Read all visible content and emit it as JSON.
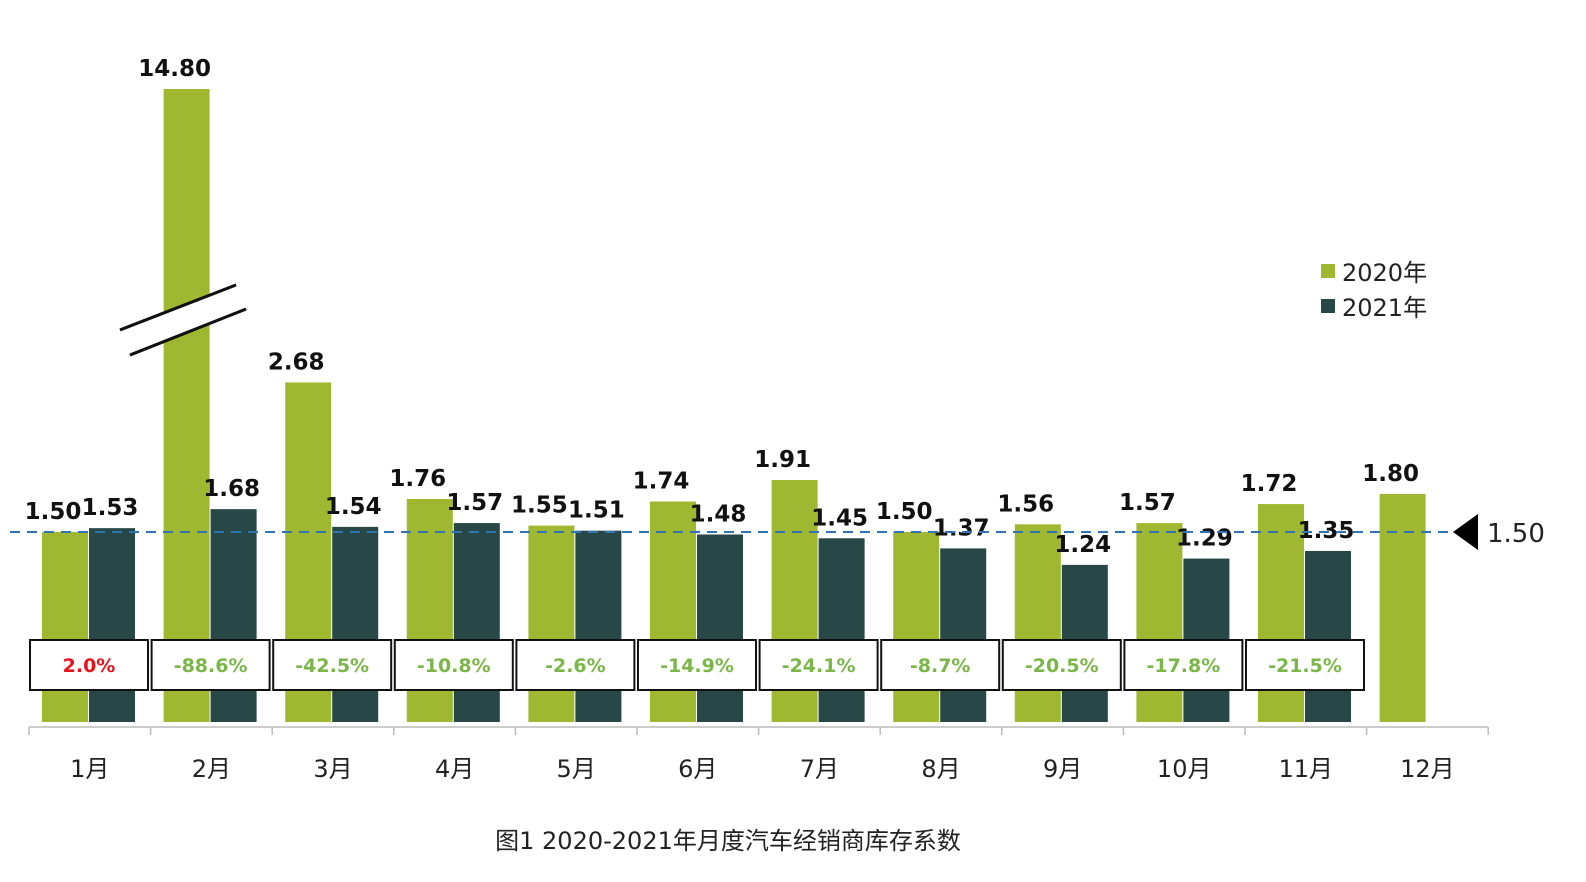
{
  "chart_data": {
    "type": "bar",
    "title": "",
    "caption": "图1  2020-2021年月度汽车经销商库存系数",
    "categories": [
      "1月",
      "2月",
      "3月",
      "4月",
      "5月",
      "6月",
      "7月",
      "8月",
      "9月",
      "10月",
      "11月",
      "12月"
    ],
    "series": [
      {
        "name": "2020年",
        "color": "#a0b831",
        "values": [
          1.5,
          14.8,
          2.68,
          1.76,
          1.55,
          1.74,
          1.91,
          1.5,
          1.56,
          1.57,
          1.72,
          1.8
        ],
        "labels": [
          "1.50",
          "14.80",
          "2.68",
          "1.76",
          "1.55",
          "1.74",
          "1.91",
          "1.50",
          "1.56",
          "1.57",
          "1.72",
          "1.80"
        ]
      },
      {
        "name": "2021年",
        "color": "#284848",
        "values": [
          1.53,
          1.68,
          1.54,
          1.57,
          1.51,
          1.48,
          1.45,
          1.37,
          1.24,
          1.29,
          1.35,
          null
        ],
        "labels": [
          "1.53",
          "1.68",
          "1.54",
          "1.57",
          "1.51",
          "1.48",
          "1.45",
          "1.37",
          "1.24",
          "1.29",
          "1.35",
          ""
        ]
      }
    ],
    "yoy_change": [
      "2.0%",
      "-88.6%",
      "-42.5%",
      "-10.8%",
      "-2.6%",
      "-14.9%",
      "-24.1%",
      "-8.7%",
      "-20.5%",
      "-17.8%",
      "-21.5%"
    ],
    "yoy_colors": {
      "positive": "#e8141c",
      "negative": "#7ab648"
    },
    "reference_line": {
      "value": 1.5,
      "label": "1.50",
      "color": "#2e75b6",
      "style": "dashed"
    },
    "axis_break": {
      "category": "2月",
      "series": "2020年"
    },
    "legend": {
      "position": "right",
      "entries": [
        "2020年",
        "2021年"
      ]
    },
    "y_axis_visible": false,
    "grid": false
  }
}
